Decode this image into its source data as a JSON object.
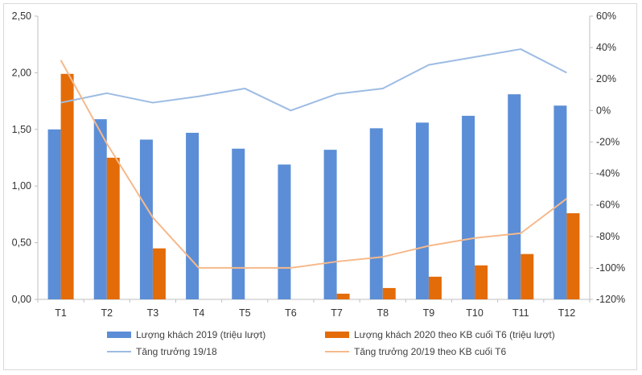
{
  "chart_data": {
    "type": "bar",
    "categories": [
      "T1",
      "T2",
      "T3",
      "T4",
      "T5",
      "T6",
      "T7",
      "T8",
      "T9",
      "T10",
      "T11",
      "T12"
    ],
    "series": [
      {
        "name": "Lượng khách 2019 (triệu lượt)",
        "kind": "bar",
        "axis": "left",
        "color": "#5b8ed6",
        "values": [
          1.5,
          1.59,
          1.41,
          1.47,
          1.33,
          1.19,
          1.32,
          1.51,
          1.56,
          1.62,
          1.81,
          1.71
        ]
      },
      {
        "name": "Lượng khách 2020  theo KB cuối T6 (triệu lượt)",
        "kind": "bar",
        "axis": "left",
        "color": "#e36c09",
        "values": [
          1.99,
          1.25,
          0.45,
          0,
          0,
          0,
          0.05,
          0.1,
          0.2,
          0.3,
          0.4,
          0.76
        ]
      },
      {
        "name": "Tăng trưởng 19/18",
        "kind": "line",
        "axis": "right",
        "color": "#9dbce3",
        "values": [
          5,
          11,
          5,
          9,
          14,
          0,
          10.5,
          14,
          29,
          34,
          39,
          24
        ]
      },
      {
        "name": "Tăng trưởng 20/19 theo KB cuối T6",
        "kind": "line",
        "axis": "right",
        "color": "#f6b98b",
        "values": [
          32,
          -21,
          -68,
          -100,
          -100,
          -100,
          -96,
          -93,
          -86,
          -81,
          -78,
          -56
        ]
      }
    ],
    "left_axis": {
      "ylim": [
        0,
        2.5
      ],
      "step": 0.5,
      "tick_labels": [
        "0,00",
        "0,50",
        "1,00",
        "1,50",
        "2,00",
        "2,50"
      ]
    },
    "right_axis": {
      "ylim": [
        -120,
        60
      ],
      "step": 20,
      "tick_labels": [
        "-120%",
        "-100%",
        "-80%",
        "-60%",
        "-40%",
        "-20%",
        "0%",
        "20%",
        "40%",
        "60%"
      ]
    },
    "title": "",
    "grid": false,
    "legend_position": "bottom"
  }
}
